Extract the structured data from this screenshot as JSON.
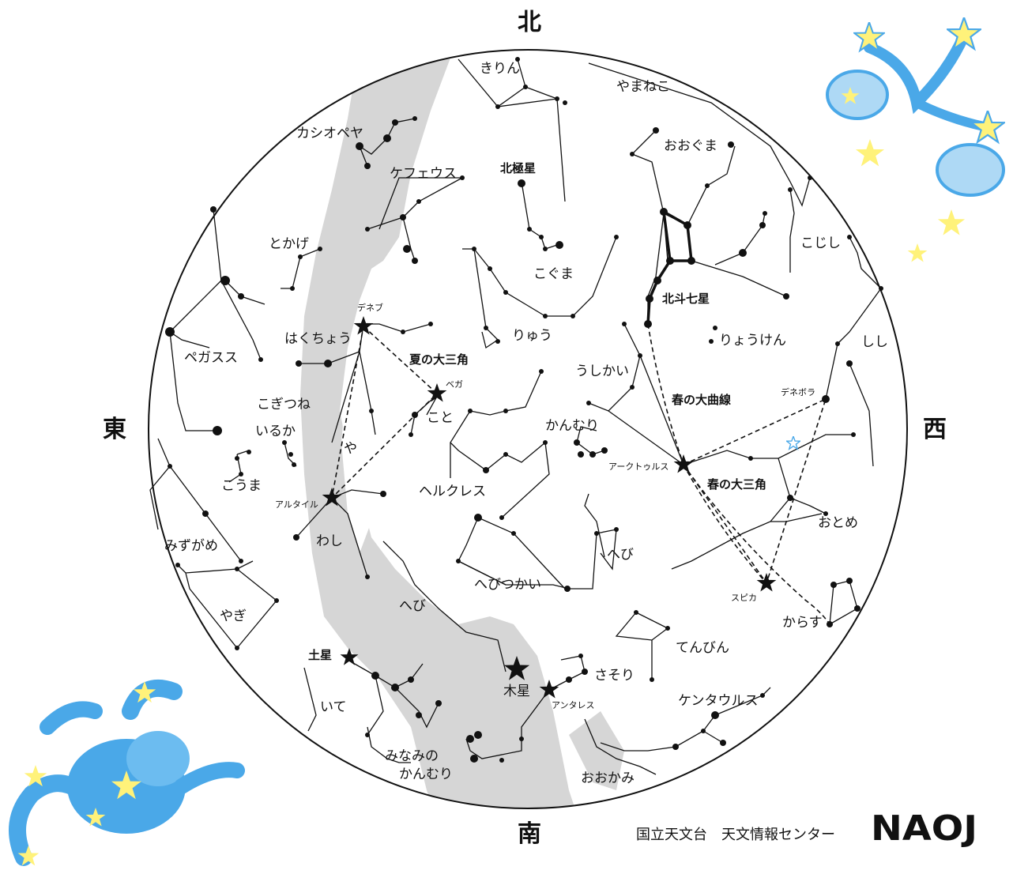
{
  "directions": {
    "north": "北",
    "south": "南",
    "east": "東",
    "west": "西"
  },
  "constellations": {
    "kirin": "きりん",
    "yamaneko": "やまねこ",
    "cassiopeia": "カシオペヤ",
    "oogumа": "おおぐま",
    "cepheus": "ケフェウス",
    "polaris": "北極星",
    "tokage": "とかげ",
    "kogima": "こぐま",
    "koshishi": "こじし",
    "hokuto": "北斗七星",
    "ryu": "りゅう",
    "ryoken": "りょうけん",
    "shishi": "しし",
    "hakucho": "はくちょう",
    "pegasus": "ペガスス",
    "ushikai": "うしかい",
    "summer_triangle": "夏の大三角",
    "spring_curve": "春の大曲線",
    "kogitsune": "こぎつね",
    "koto": "こと",
    "kanmuri": "かんむり",
    "iruka": "いるか",
    "ya": "や",
    "kouma": "こうま",
    "hercules": "ヘルクレス",
    "spring_triangle": "春の大三角",
    "otome": "おとめ",
    "mizugame": "みずがめ",
    "washi": "わし",
    "hebi1": "へび",
    "hebitsukai": "へびつかい",
    "yagi": "やぎ",
    "hebi2": "へび",
    "karasu": "からす",
    "tenbin": "てんびん",
    "saturn": "土星",
    "sasori": "さそり",
    "jupiter": "木星",
    "centaurus": "ケンタウルス",
    "ite": "いて",
    "minami1": "みなみの",
    "minami2": "かんむり",
    "ookami": "おおかみ"
  },
  "stars": {
    "deneb": "デネブ",
    "vega": "ベガ",
    "altair": "アルタイル",
    "arcturus": "アークトゥルス",
    "denebola": "デネボラ",
    "spica": "スピカ",
    "antares": "アンタレス"
  },
  "credit": "国立天文台　天文情報センター",
  "logo": "NAOJ",
  "colors": {
    "milky_way": "#d6d6d6",
    "line": "#111111",
    "mascot_blue": "#4aa8e8",
    "mascot_star": "#fff27a"
  }
}
